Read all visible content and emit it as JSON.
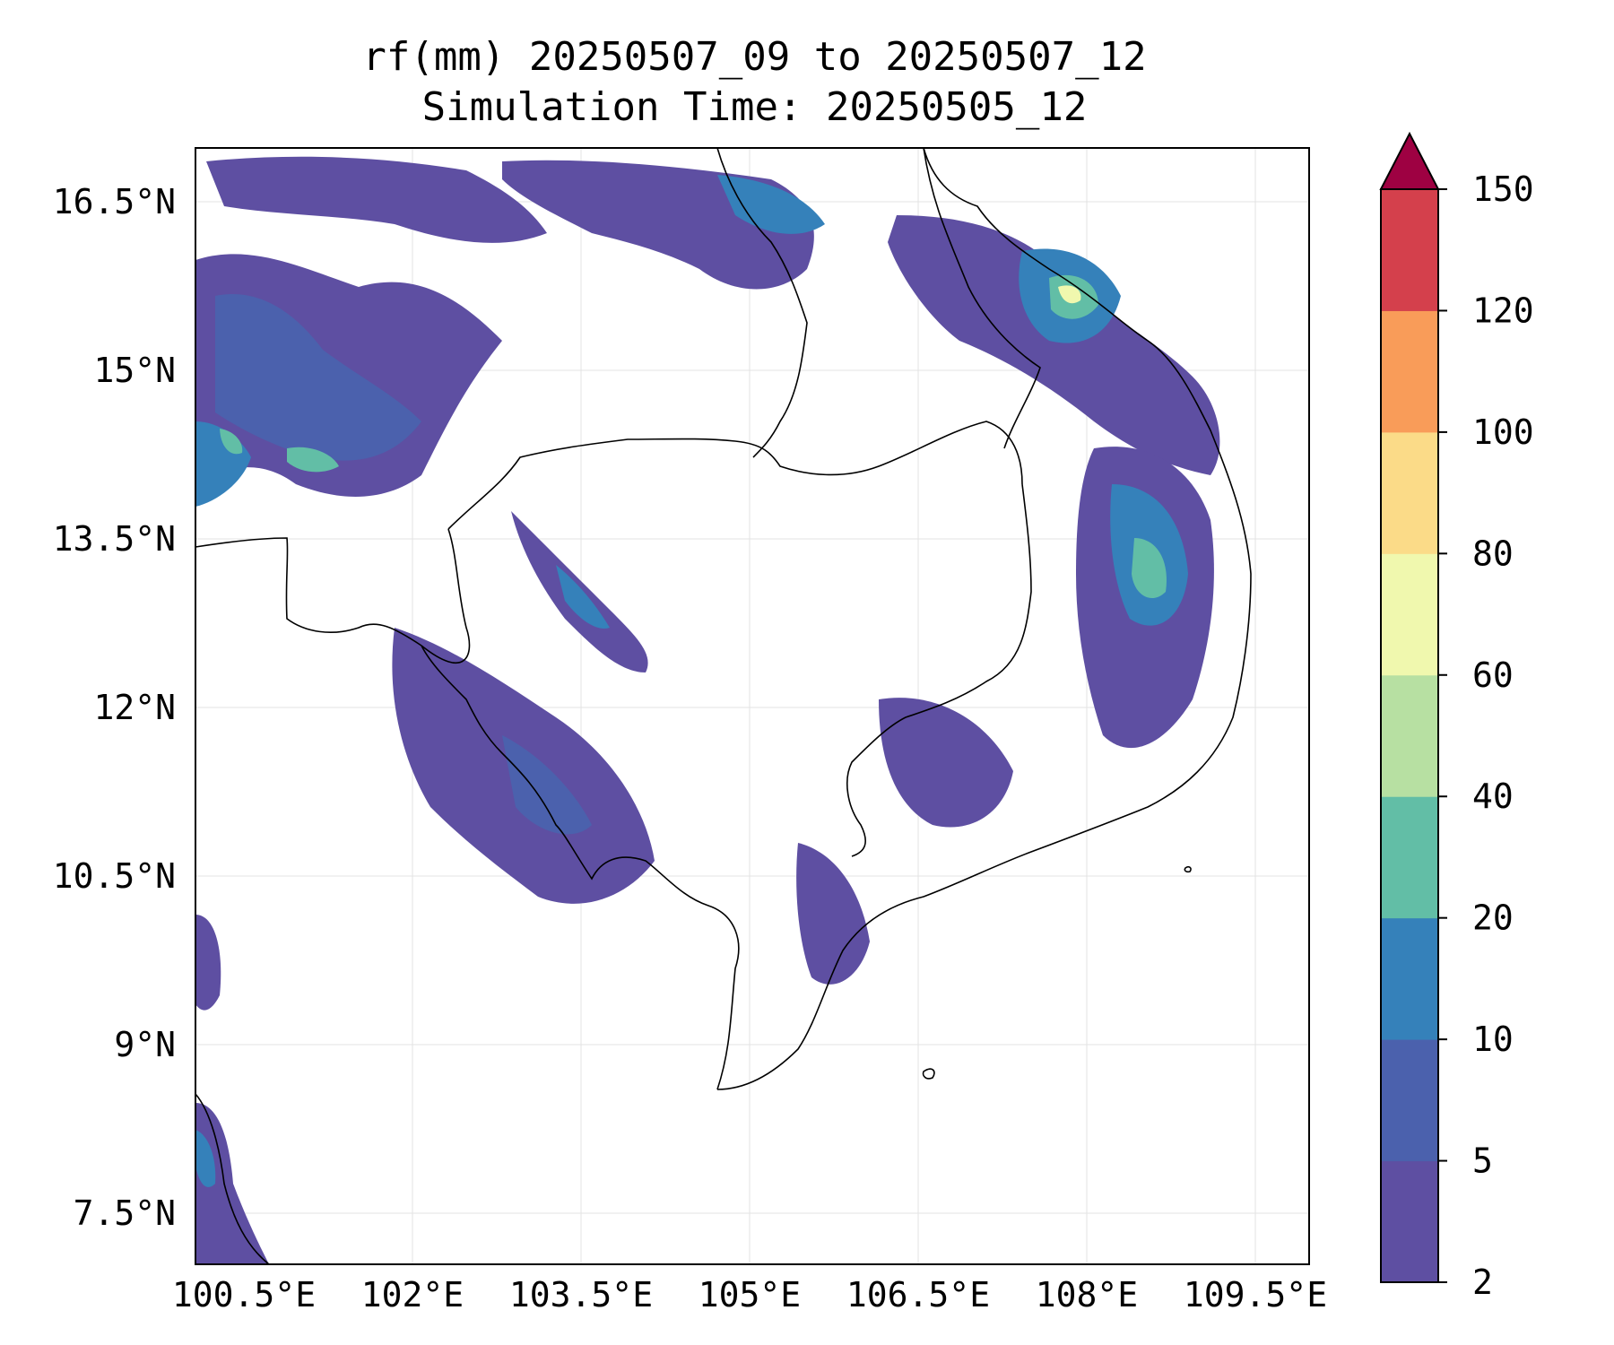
{
  "title": {
    "line1": "rf(mm) 20250507_09 to 20250507_12",
    "line2": "Simulation Time: 20250505_12"
  },
  "map": {
    "lat_labels": [
      "16.5°N",
      "15°N",
      "13.5°N",
      "12°N",
      "10.5°N",
      "9°N",
      "7.5°N"
    ],
    "lon_labels": [
      "100.5°E",
      "102°E",
      "103.5°E",
      "105°E",
      "106.5°E",
      "108°E",
      "109.5°E"
    ]
  },
  "colorbar": {
    "levels": [
      "2",
      "5",
      "10",
      "20",
      "40",
      "60",
      "80",
      "100",
      "120",
      "150"
    ],
    "colors": [
      "#5e4fa2",
      "#4b61ad",
      "#3581ba",
      "#62bea6",
      "#b7e0a2",
      "#f0f8ae",
      "#fbdb88",
      "#f99c59",
      "#d4404c"
    ],
    "extend_color": "#9e0142"
  }
}
